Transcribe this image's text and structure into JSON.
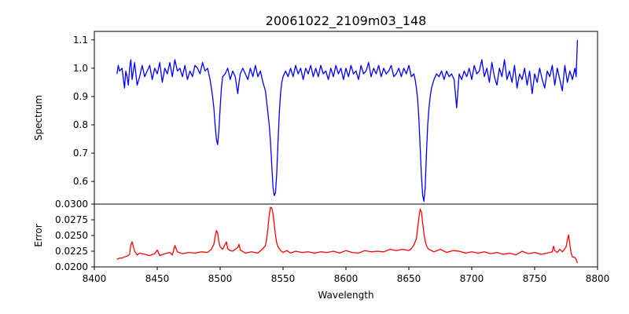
{
  "chart_data": [
    {
      "type": "line",
      "title": "20061022_2109m03_148",
      "xlabel": "",
      "ylabel": "Spectrum",
      "xlim": [
        8400,
        8800
      ],
      "ylim": [
        0.52,
        1.13
      ],
      "grid": false,
      "legend": "none",
      "y_ticks": [
        "0.6",
        "0.7",
        "0.8",
        "0.9",
        "1.0",
        "1.1"
      ],
      "series": [
        {
          "color": "#0000ff",
          "x": [
            8418,
            8419,
            8420,
            8422,
            8424,
            8425,
            8426,
            8427,
            8428,
            8429,
            8430,
            8432,
            8434,
            8436,
            8438,
            8440,
            8442,
            8444,
            8446,
            8448,
            8450,
            8452,
            8454,
            8456,
            8458,
            8460,
            8462,
            8464,
            8466,
            8468,
            8470,
            8472,
            8474,
            8476,
            8478,
            8480,
            8482,
            8484,
            8486,
            8488,
            8490,
            8491,
            8492,
            8493,
            8494,
            8495,
            8496,
            8497,
            8498,
            8499,
            8500,
            8501,
            8502,
            8504,
            8506,
            8508,
            8510,
            8512,
            8513,
            8514,
            8515,
            8516,
            8518,
            8520,
            8522,
            8524,
            8526,
            8528,
            8530,
            8532,
            8534,
            8536,
            8537,
            8538,
            8539,
            8540,
            8541,
            8542,
            8543,
            8544,
            8545,
            8546,
            8547,
            8548,
            8549,
            8550,
            8552,
            8554,
            8556,
            8558,
            8560,
            8562,
            8564,
            8566,
            8568,
            8570,
            8572,
            8574,
            8576,
            8578,
            8580,
            8582,
            8584,
            8586,
            8588,
            8590,
            8592,
            8594,
            8596,
            8598,
            8600,
            8602,
            8604,
            8606,
            8608,
            8610,
            8612,
            8614,
            8616,
            8618,
            8620,
            8622,
            8624,
            8626,
            8628,
            8630,
            8632,
            8634,
            8636,
            8638,
            8640,
            8642,
            8644,
            8646,
            8648,
            8650,
            8652,
            8654,
            8655,
            8656,
            8657,
            8658,
            8659,
            8660,
            8661,
            8662,
            8663,
            8664,
            8665,
            8666,
            8667,
            8668,
            8670,
            8672,
            8674,
            8676,
            8678,
            8680,
            8682,
            8684,
            8686,
            8687,
            8688,
            8689,
            8690,
            8692,
            8694,
            8696,
            8698,
            8700,
            8702,
            8704,
            8706,
            8708,
            8710,
            8712,
            8714,
            8716,
            8718,
            8720,
            8722,
            8724,
            8726,
            8728,
            8730,
            8732,
            8734,
            8736,
            8738,
            8740,
            8742,
            8744,
            8746,
            8748,
            8750,
            8752,
            8754,
            8756,
            8758,
            8760,
            8762,
            8764,
            8766,
            8768,
            8770,
            8772,
            8774,
            8776,
            8778,
            8780,
            8782,
            8783,
            8784
          ],
          "y": [
            0.98,
            1.01,
            0.99,
            1.0,
            0.93,
            0.99,
            0.97,
            0.94,
            1.0,
            1.03,
            0.96,
            1.02,
            0.94,
            0.97,
            1.01,
            0.97,
            0.99,
            1.01,
            0.96,
            1.0,
            0.98,
            1.02,
            0.95,
            1.0,
            0.98,
            1.02,
            0.97,
            1.03,
            0.99,
            1.0,
            0.97,
            1.01,
            0.96,
            0.99,
            0.97,
            1.01,
            1.0,
            0.98,
            1.02,
            0.99,
            1.0,
            0.98,
            0.96,
            0.93,
            0.9,
            0.86,
            0.8,
            0.75,
            0.73,
            0.78,
            0.86,
            0.93,
            0.97,
            0.98,
            1.0,
            0.96,
            0.99,
            0.97,
            0.94,
            0.91,
            0.95,
            0.98,
            1.0,
            0.98,
            0.96,
            1.0,
            0.97,
            1.01,
            0.97,
            0.99,
            0.95,
            0.92,
            0.88,
            0.84,
            0.8,
            0.74,
            0.66,
            0.58,
            0.55,
            0.56,
            0.63,
            0.74,
            0.84,
            0.91,
            0.95,
            0.97,
            0.99,
            0.97,
            1.0,
            0.97,
            1.01,
            0.98,
            1.0,
            0.96,
            1.0,
            0.98,
            1.01,
            0.97,
            1.0,
            0.97,
            1.01,
            0.98,
            0.99,
            0.96,
            1.0,
            0.97,
            1.01,
            0.98,
            1.0,
            0.96,
            1.0,
            0.97,
            1.01,
            0.98,
            0.99,
            0.96,
            1.01,
            0.98,
            0.99,
            1.02,
            0.97,
            1.0,
            0.98,
            1.01,
            0.97,
            1.0,
            0.98,
            0.99,
            1.01,
            0.97,
            0.98,
            1.0,
            0.97,
            1.0,
            0.98,
            1.01,
            0.97,
            0.98,
            0.96,
            0.93,
            0.89,
            0.82,
            0.72,
            0.62,
            0.55,
            0.53,
            0.58,
            0.7,
            0.8,
            0.86,
            0.9,
            0.93,
            0.96,
            0.98,
            0.97,
            0.99,
            0.96,
            0.99,
            0.97,
            0.98,
            0.96,
            0.91,
            0.86,
            0.92,
            0.98,
            0.96,
            0.99,
            0.97,
            1.0,
            0.96,
            1.01,
            0.98,
            0.99,
            1.03,
            0.97,
            1.0,
            0.95,
            1.02,
            0.97,
            0.94,
            1.0,
            0.97,
            1.03,
            0.96,
            0.99,
            0.95,
            1.01,
            0.93,
            0.98,
            0.96,
            1.0,
            0.94,
            0.99,
            0.91,
            0.98,
            0.95,
            1.0,
            0.96,
            0.93,
            0.99,
            0.97,
            1.01,
            0.94,
            1.0,
            0.96,
            0.92,
            1.01,
            0.95,
            0.99,
            0.96,
            1.0,
            0.97,
            1.1
          ]
        }
      ]
    },
    {
      "type": "line",
      "title": "",
      "xlabel": "Wavelength",
      "ylabel": "Error",
      "xlim": [
        8400,
        8800
      ],
      "ylim": [
        0.02,
        0.03
      ],
      "grid": false,
      "legend": "none",
      "y_ticks": [
        "0.0200",
        "0.0225",
        "0.0250",
        "0.0275",
        "0.0300"
      ],
      "x_ticks": [
        "8400",
        "8450",
        "8500",
        "8550",
        "8600",
        "8650",
        "8700",
        "8750",
        "8800"
      ],
      "series": [
        {
          "color": "#ff0000",
          "x": [
            8418,
            8420,
            8422,
            8424,
            8426,
            8428,
            8429,
            8430,
            8432,
            8434,
            8436,
            8440,
            8444,
            8448,
            8450,
            8452,
            8456,
            8460,
            8462,
            8464,
            8466,
            8470,
            8475,
            8480,
            8485,
            8490,
            8493,
            8495,
            8496,
            8497,
            8498,
            8499,
            8500,
            8502,
            8504,
            8505,
            8506,
            8508,
            8510,
            8514,
            8515,
            8516,
            8520,
            8525,
            8530,
            8534,
            8536,
            8537,
            8538,
            8539,
            8540,
            8541,
            8542,
            8543,
            8544,
            8545,
            8546,
            8547,
            8548,
            8550,
            8553,
            8556,
            8560,
            8565,
            8570,
            8575,
            8580,
            8585,
            8590,
            8595,
            8600,
            8605,
            8610,
            8615,
            8620,
            8625,
            8630,
            8635,
            8640,
            8645,
            8650,
            8652,
            8654,
            8656,
            8657,
            8658,
            8659,
            8660,
            8661,
            8662,
            8663,
            8664,
            8665,
            8666,
            8668,
            8670,
            8675,
            8680,
            8685,
            8690,
            8695,
            8700,
            8705,
            8710,
            8715,
            8720,
            8725,
            8730,
            8735,
            8740,
            8745,
            8750,
            8755,
            8760,
            8764,
            8765,
            8766,
            8768,
            8770,
            8772,
            8774,
            8775,
            8776,
            8777,
            8778,
            8779,
            8780,
            8782,
            8783,
            8784
          ],
          "y": [
            0.0212,
            0.0214,
            0.0214,
            0.0216,
            0.0217,
            0.022,
            0.0235,
            0.024,
            0.0225,
            0.0219,
            0.0222,
            0.022,
            0.0218,
            0.0221,
            0.0227,
            0.0218,
            0.0221,
            0.0223,
            0.0219,
            0.0234,
            0.0224,
            0.0221,
            0.0223,
            0.0222,
            0.0224,
            0.0223,
            0.0228,
            0.0236,
            0.0248,
            0.0258,
            0.0254,
            0.024,
            0.0232,
            0.0228,
            0.0236,
            0.024,
            0.0229,
            0.0226,
            0.0225,
            0.0231,
            0.0236,
            0.0227,
            0.0222,
            0.0224,
            0.0222,
            0.0229,
            0.0234,
            0.0245,
            0.0262,
            0.0282,
            0.0295,
            0.0294,
            0.0285,
            0.0268,
            0.025,
            0.0238,
            0.0232,
            0.0229,
            0.0226,
            0.0223,
            0.0226,
            0.0222,
            0.0225,
            0.0223,
            0.0224,
            0.0222,
            0.0224,
            0.0223,
            0.0225,
            0.0222,
            0.0226,
            0.0223,
            0.0222,
            0.0226,
            0.0224,
            0.0225,
            0.0224,
            0.0228,
            0.0226,
            0.0228,
            0.0226,
            0.0229,
            0.0235,
            0.0245,
            0.0262,
            0.0278,
            0.0292,
            0.0287,
            0.027,
            0.0253,
            0.0241,
            0.0234,
            0.023,
            0.0228,
            0.0226,
            0.0224,
            0.0228,
            0.0223,
            0.0226,
            0.0225,
            0.0222,
            0.0224,
            0.0222,
            0.0224,
            0.0221,
            0.0223,
            0.022,
            0.0222,
            0.0219,
            0.0225,
            0.0221,
            0.0223,
            0.022,
            0.0222,
            0.0224,
            0.0233,
            0.0226,
            0.0223,
            0.0228,
            0.0224,
            0.0229,
            0.0232,
            0.0243,
            0.0251,
            0.0235,
            0.0222,
            0.0216,
            0.0215,
            0.0212,
            0.0206
          ]
        }
      ]
    }
  ]
}
